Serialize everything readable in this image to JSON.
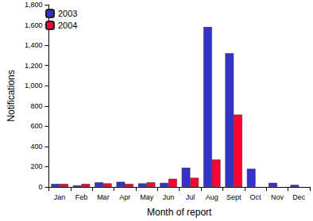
{
  "chart_data": {
    "type": "bar",
    "x_label": "Month of report",
    "y_label": "Notifications",
    "categories": [
      "Jan",
      "Feb",
      "Mar",
      "Apr",
      "May",
      "Jun",
      "Jul",
      "Aug",
      "Sept",
      "Oct",
      "Nov",
      "Dec"
    ],
    "series": [
      {
        "name": "2003",
        "color": "#3333cc",
        "values": [
          30,
          15,
          45,
          50,
          35,
          40,
          190,
          1580,
          1320,
          180,
          40,
          20
        ]
      },
      {
        "name": "2004",
        "color": "#ff0033",
        "values": [
          30,
          30,
          35,
          30,
          45,
          80,
          90,
          270,
          715,
          null,
          null,
          null
        ]
      }
    ],
    "ylim": [
      0,
      1800
    ],
    "yticks": [
      0,
      200,
      400,
      600,
      800,
      {
        "value": 1000,
        "label": "1,000"
      },
      {
        "value": 1200,
        "label": "1,200"
      },
      {
        "value": 1400,
        "label": "1,400"
      },
      {
        "value": 1600,
        "label": "1,600"
      },
      {
        "value": 1800,
        "label": "1,800"
      }
    ],
    "grid": false,
    "legend": "upper left"
  }
}
